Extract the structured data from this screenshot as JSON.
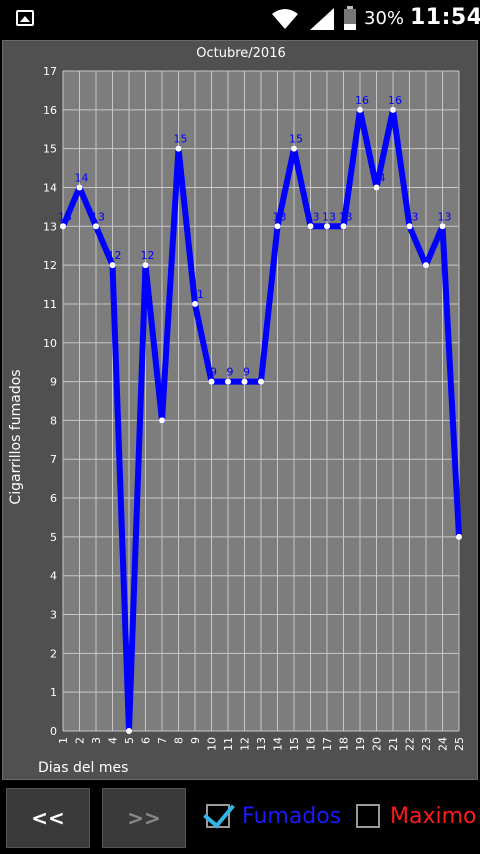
{
  "status_bar": {
    "battery_percent": "30%",
    "battery_level": 0.3,
    "time": "11:54",
    "icons": [
      "gallery-icon",
      "wifi-icon",
      "signal-icon",
      "battery-icon"
    ]
  },
  "chart_data": {
    "type": "line",
    "title": "Octubre/2016",
    "xlabel": "Dias del mes",
    "ylabel": "Cigarrillos fumados",
    "ylim": [
      0,
      17
    ],
    "xlim": [
      1,
      25
    ],
    "grid": true,
    "x": [
      1,
      2,
      3,
      4,
      5,
      6,
      7,
      8,
      9,
      10,
      11,
      12,
      13,
      14,
      15,
      16,
      17,
      18,
      19,
      20,
      21,
      22,
      23,
      24,
      25
    ],
    "series": [
      {
        "name": "Fumados",
        "color": "#0000ff",
        "values": [
          13,
          14,
          13,
          12,
          0,
          12,
          8,
          15,
          11,
          9,
          9,
          9,
          9,
          13,
          15,
          13,
          13,
          13,
          16,
          14,
          16,
          13,
          12,
          13,
          5
        ]
      }
    ],
    "point_labels": [
      "13",
      "14",
      "13",
      "12",
      "",
      "12",
      "",
      "15",
      "11",
      "9",
      "9",
      "9",
      "",
      "13",
      "15",
      "13",
      "13",
      "13",
      "16",
      "14",
      "16",
      "13",
      "",
      "13",
      ""
    ]
  },
  "controls": {
    "prev_label": "<<",
    "next_label": ">>",
    "fumados_label": "Fumados",
    "fumados_checked": true,
    "maximo_label": "Maximo",
    "maximo_checked": false
  }
}
